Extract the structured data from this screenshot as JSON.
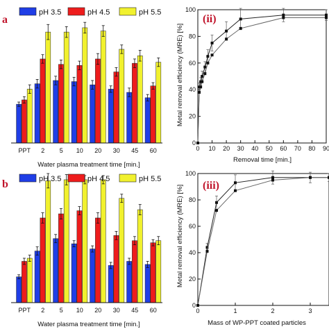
{
  "chart_data": [
    {
      "panel": "a",
      "type": "bar",
      "categories": [
        "PPT",
        "2",
        "5",
        "10",
        "20",
        "30",
        "45",
        "60"
      ],
      "xlabel": "Water plasma treatment time [min.]",
      "series": [
        {
          "name": "pH 3.5",
          "values": [
            36,
            55,
            58,
            57,
            54,
            50,
            47,
            42
          ],
          "errors": [
            2,
            4,
            4,
            4,
            4,
            3,
            4,
            3
          ]
        },
        {
          "name": "pH 4.5",
          "values": [
            40,
            78,
            73,
            72,
            78,
            66,
            74,
            53
          ],
          "errors": [
            3,
            4,
            4,
            4,
            5,
            4,
            4,
            3
          ]
        },
        {
          "name": "pH 5.5",
          "values": [
            50,
            103,
            103,
            107,
            104,
            87,
            81,
            75
          ],
          "errors": [
            4,
            7,
            5,
            5,
            5,
            4,
            5,
            4
          ]
        }
      ],
      "colors": [
        "#1f3ee6",
        "#ee1c1c",
        "#f1f12e"
      ]
    },
    {
      "panel": "b",
      "type": "bar",
      "categories": [
        "PPT",
        "2",
        "5",
        "10",
        "20",
        "30",
        "45",
        "60"
      ],
      "xlabel": "Water plasma treatment time [min.]",
      "series": [
        {
          "name": "pH 3.5",
          "values": [
            25,
            50,
            62,
            57,
            52,
            36,
            40,
            37
          ],
          "errors": [
            2,
            4,
            4,
            3,
            3,
            3,
            3,
            3
          ]
        },
        {
          "name": "pH 4.5",
          "values": [
            40,
            82,
            86,
            89,
            82,
            65,
            60,
            58
          ],
          "errors": [
            3,
            5,
            5,
            4,
            5,
            4,
            4,
            3
          ]
        },
        {
          "name": "pH 5.5",
          "values": [
            43,
            118,
            119,
            119,
            119,
            101,
            90,
            60
          ],
          "errors": [
            3,
            7,
            5,
            4,
            4,
            4,
            5,
            4
          ]
        }
      ],
      "colors": [
        "#1f3ee6",
        "#ee1c1c",
        "#f1f12e"
      ]
    },
    {
      "panel": "(ii)",
      "type": "line",
      "xlabel": "Removal time   [min.]",
      "ylabel": "Metal removal efficiency (MRE)   [%]",
      "xlim": [
        0,
        90
      ],
      "ylim": [
        0,
        100
      ],
      "xticks": [
        0,
        10,
        20,
        30,
        40,
        50,
        60,
        70,
        80,
        90
      ],
      "yticks": [
        0,
        20,
        40,
        60,
        80,
        100
      ],
      "series": [
        {
          "x": [
            0,
            1,
            2,
            3,
            5,
            7,
            10,
            20,
            30,
            60,
            90
          ],
          "y": [
            0,
            42,
            46,
            50,
            57,
            65,
            75,
            84,
            93,
            96,
            96
          ],
          "errors": [
            0,
            3,
            3,
            4,
            4,
            5,
            6,
            7,
            8,
            5,
            4
          ]
        },
        {
          "x": [
            0,
            1,
            2,
            3,
            5,
            7,
            10,
            20,
            30,
            60,
            90
          ],
          "y": [
            0,
            38,
            42,
            46,
            52,
            60,
            66,
            78,
            86,
            94,
            94
          ],
          "errors": [
            0,
            3,
            3,
            4,
            4,
            5,
            6,
            7,
            8,
            5,
            4
          ]
        }
      ]
    },
    {
      "panel": "(iii)",
      "type": "line",
      "xlabel": "Mass of WP-PPT coated particles",
      "ylabel": "Metal removal efficiency (MRE)   [%]",
      "xlim": [
        0,
        3.5
      ],
      "ylim": [
        0,
        100
      ],
      "xticks": [
        0,
        1,
        2,
        3
      ],
      "yticks": [
        0,
        20,
        40,
        60,
        80,
        100
      ],
      "series": [
        {
          "x": [
            0,
            0.25,
            0.5,
            1,
            2,
            3,
            3.5
          ],
          "y": [
            0,
            44,
            78,
            93,
            97,
            97,
            97
          ],
          "errors": [
            0,
            3,
            5,
            6,
            5,
            4,
            3
          ]
        },
        {
          "x": [
            0,
            0.25,
            0.5,
            1,
            2,
            3,
            3.5
          ],
          "y": [
            0,
            41,
            72,
            87,
            95,
            97,
            97
          ],
          "errors": [
            0,
            3,
            5,
            6,
            5,
            4,
            3
          ]
        }
      ]
    }
  ],
  "labels": {
    "panel_a": "a",
    "panel_b": "b",
    "panel_ii": "(ii)",
    "panel_iii": "(iii)",
    "legend": [
      "pH 3.5",
      "pH 4.5",
      "pH 5.5"
    ],
    "categories": [
      "PPT",
      "2",
      "5",
      "10",
      "20",
      "30",
      "45",
      "60"
    ],
    "xlabel_bar": "Water plasma treatment time [min.]",
    "ylabel_line": "Metal removal efficiency (MRE)   [%]",
    "xlabel_ii": "Removal time   [min.]",
    "xlabel_iii": "Mass of WP-PPT coated particles",
    "yticks": [
      "0",
      "20",
      "40",
      "60",
      "80",
      "100"
    ],
    "xticks_ii": [
      "0",
      "10",
      "20",
      "30",
      "40",
      "50",
      "60",
      "70",
      "80",
      "90"
    ],
    "xticks_iii": [
      "0",
      "1",
      "2",
      "3"
    ]
  }
}
